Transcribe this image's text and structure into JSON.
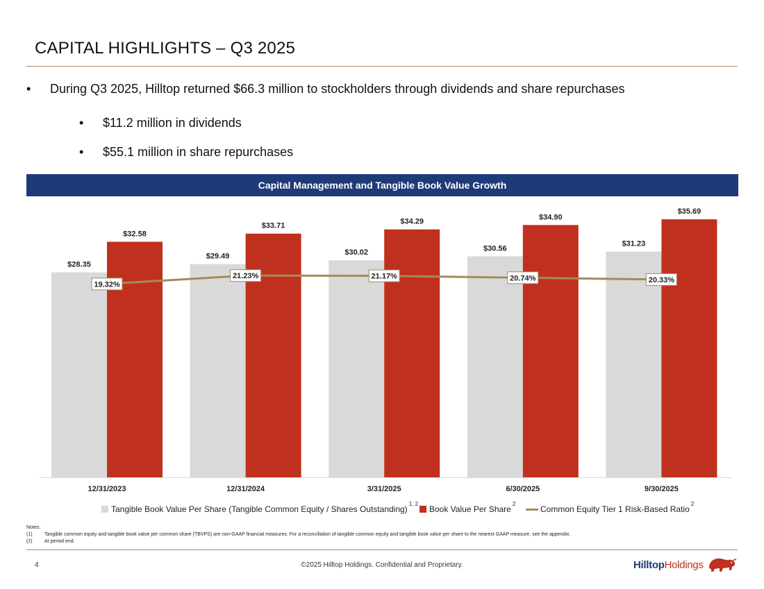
{
  "slide": {
    "title": "CAPITAL HIGHLIGHTS – Q3 2025",
    "bullets": [
      "During Q3 2025, Hilltop returned $66.3 million to stockholders through dividends and share repurchases"
    ],
    "sub_bullets": [
      "$11.2 million in dividends",
      "$55.1 million in share repurchases"
    ],
    "bullet_glyph": "•",
    "chart_header": "Capital Management and Tangible Book Value Growth",
    "notes_label": "Notes:",
    "notes": [
      {
        "num": "(1)",
        "text": "Tangible common equity and tangible book value per common share (TBVPS) are non-GAAP financial measures. For a reconciliation of tangible common equity and tangible book value per share to the nearest GAAP measure, see the appendix."
      },
      {
        "num": "(2)",
        "text": "At period end."
      }
    ],
    "page_number": "4",
    "footer": "©2025 Hilltop Holdings. Confidential and Proprietary.",
    "logo_part1": "Hilltop",
    "logo_part2": "Holdings",
    "logo_icon": "bison-icon"
  },
  "chart_data": {
    "type": "bar",
    "categories": [
      "12/31/2023",
      "12/31/2024",
      "3/31/2025",
      "6/30/2025",
      "9/30/2025"
    ],
    "series": [
      {
        "name": "Tangible Book Value Per Share (Tangible Common Equity / Shares Outstanding)",
        "superscript": "1, 2",
        "type": "bar",
        "color": "#d9d9d9",
        "values": [
          28.35,
          29.49,
          30.02,
          30.56,
          31.23
        ],
        "labels": [
          "$28.35",
          "$29.49",
          "$30.02",
          "$30.56",
          "$31.23"
        ]
      },
      {
        "name": "Book Value Per Share",
        "superscript": "2",
        "type": "bar",
        "color": "#c0301e",
        "values": [
          32.58,
          33.71,
          34.29,
          34.9,
          35.69
        ],
        "labels": [
          "$32.58",
          "$33.71",
          "$34.29",
          "$34.90",
          "$35.69"
        ]
      },
      {
        "name": "Common Equity Tier 1 Risk-Based Ratio",
        "superscript": "2",
        "type": "line",
        "axis": "secondary",
        "color": "#a38a5b",
        "values": [
          19.32,
          21.23,
          21.17,
          20.74,
          20.33
        ],
        "labels": [
          "19.32%",
          "21.23%",
          "21.17%",
          "20.74%",
          "20.33%"
        ]
      }
    ],
    "ylim": [
      0,
      40
    ],
    "y2lim": [
      -25,
      35
    ],
    "grid": false,
    "legend": "bottom"
  }
}
